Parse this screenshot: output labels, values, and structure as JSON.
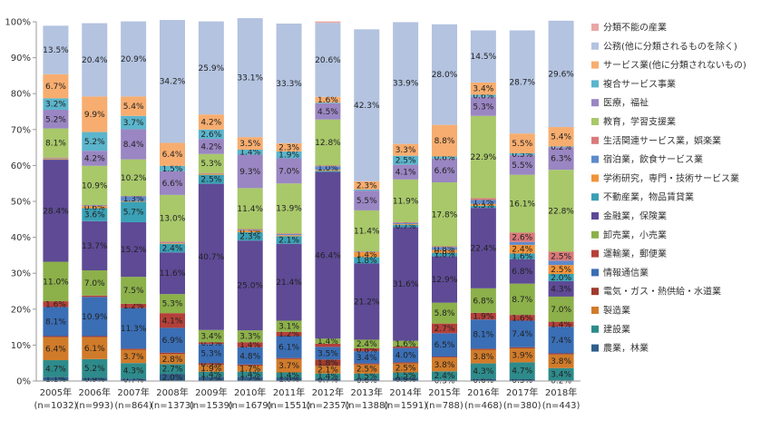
{
  "chart_data": {
    "type": "bar",
    "stacked": true,
    "percent": true,
    "categories": [
      [
        "2005年",
        "(n=1032)"
      ],
      [
        "2006年",
        "(n=993)"
      ],
      [
        "2007年",
        "(n=864)"
      ],
      [
        "2008年",
        "(n=1373)"
      ],
      [
        "2009年",
        "(n=1539)"
      ],
      [
        "2010年",
        "(n=1679)"
      ],
      [
        "2011年",
        "(n=1551)"
      ],
      [
        "2012年",
        "(n=2357)"
      ],
      [
        "2013年",
        "(n=1388)"
      ],
      [
        "2014年",
        "(n=1591)"
      ],
      [
        "2015年",
        "(n=788)"
      ],
      [
        "2016年",
        "(n=468)"
      ],
      [
        "2017年",
        "(n=380)"
      ],
      [
        "2018年",
        "(n=443)"
      ]
    ],
    "ylim": [
      0,
      100
    ],
    "yticks": [
      "0%",
      "10%",
      "20%",
      "30%",
      "40%",
      "50%",
      "60%",
      "70%",
      "80%",
      "90%",
      "100%"
    ],
    "grid": false,
    "legend_position": "right",
    "series": [
      {
        "name": "農業，林業",
        "color": "#2F5F8A",
        "values": [
          1.1,
          0.9,
          0.7,
          2.0,
          1.2,
          1.2,
          1.0,
          0.7,
          0.6,
          0.9,
          0.3,
          0.6,
          0.5,
          0.2
        ],
        "labels": [
          "1.1%",
          "0.9%",
          "0.7%",
          "2.0%",
          "1.2%",
          "1.2%",
          "1.0%",
          "0.7%",
          "0.6%",
          "0.9%",
          "0.3%",
          "0.6%",
          "0.5%",
          "0.2%"
        ]
      },
      {
        "name": "建設業",
        "color": "#2E8B8B",
        "values": [
          4.7,
          5.2,
          4.3,
          2.7,
          1.4,
          1.4,
          1.4,
          1.4,
          1.5,
          1.5,
          2.4,
          4.3,
          4.7,
          3.4
        ],
        "labels": [
          "4.7%",
          "5.2%",
          "4.3%",
          "2.7%",
          "1.4%",
          "1.4%",
          "1.4%",
          "1.4%",
          "1.5%",
          "1.5%",
          "2.4%",
          "4.3%",
          "4.7%",
          "3.4%"
        ]
      },
      {
        "name": "製造業",
        "color": "#D07B2A",
        "values": [
          6.4,
          6.1,
          3.7,
          2.8,
          1.9,
          1.7,
          3.7,
          2.1,
          2.5,
          2.5,
          3.8,
          3.8,
          3.9,
          3.8
        ],
        "labels": [
          "6.4%",
          "6.1%",
          "3.7%",
          "2.8%",
          "1.9%",
          "1.7%",
          "3.7%",
          "2.1%",
          "2.5%",
          "2.5%",
          "3.8%",
          "3.8%",
          "3.9%",
          "3.8%"
        ]
      },
      {
        "name": "電気・ガス・熱供給・水道業",
        "color": "#A03A2E",
        "values": [
          0.3,
          0.3,
          0.3,
          0.4,
          0.5,
          0.3,
          0.3,
          1.8,
          0.3,
          0.3,
          0.3,
          0.3,
          0.3,
          0.3
        ],
        "labels": [
          "",
          "",
          "",
          "",
          "0.5%",
          "",
          "",
          "1.8%",
          "",
          "",
          "",
          "",
          "",
          ""
        ]
      },
      {
        "name": "情報通信業",
        "color": "#3A6EB5",
        "values": [
          8.1,
          10.9,
          11.3,
          6.9,
          5.3,
          4.8,
          6.1,
          3.5,
          3.4,
          4.0,
          6.5,
          8.1,
          7.4,
          7.4
        ],
        "labels": [
          "8.1%",
          "10.9%",
          "11.3%",
          "6.9%",
          "5.3%",
          "4.8%",
          "6.1%",
          "3.5%",
          "3.4%",
          "4.0%",
          "6.5%",
          "8.1%",
          "7.4%",
          "7.4%"
        ]
      },
      {
        "name": "運輸業，郵便業",
        "color": "#B5403A",
        "values": [
          1.6,
          0.4,
          1.2,
          4.1,
          0.5,
          1.4,
          1.2,
          0.9,
          0.8,
          0.4,
          2.7,
          1.9,
          1.6,
          1.4
        ],
        "labels": [
          "1.6%",
          "",
          "1.2%",
          "4.1%",
          "0.5%",
          "1.4%",
          "1.2%",
          "",
          "0.8%",
          "",
          "2.7%",
          "1.9%",
          "1.6%",
          "1.4%"
        ]
      },
      {
        "name": "卸売業，小売業",
        "color": "#8CB04A",
        "values": [
          11.0,
          7.0,
          7.5,
          5.3,
          3.4,
          3.3,
          3.1,
          1.4,
          2.4,
          1.6,
          5.8,
          6.8,
          8.7,
          7.0
        ],
        "labels": [
          "11.0%",
          "7.0%",
          "7.5%",
          "5.3%",
          "3.4%",
          "3.3%",
          "3.1%",
          "1.4%",
          "2.4%",
          "1.6%",
          "5.8%",
          "6.8%",
          "8.7%",
          "7.0%"
        ]
      },
      {
        "name": "金融業，保険業",
        "color": "#5E4A95",
        "values": [
          28.4,
          13.7,
          15.2,
          11.6,
          40.7,
          25.0,
          21.4,
          46.4,
          21.2,
          31.6,
          12.9,
          22.4,
          6.8,
          4.3
        ],
        "labels": [
          "28.4%",
          "13.7%",
          "15.2%",
          "11.6%",
          "40.7%",
          "25.0%",
          "21.4%",
          "46.4%",
          "21.2%",
          "31.6%",
          "12.9%",
          "22.4%",
          "6.8%",
          "4.3%"
        ]
      },
      {
        "name": "不動産業，物品賃貸業",
        "color": "#3AA0B5",
        "values": [
          0.1,
          3.6,
          5.7,
          2.4,
          2.5,
          2.3,
          2.1,
          0.3,
          1.8,
          0.7,
          1.0,
          0.6,
          1.6,
          2.0
        ],
        "labels": [
          "",
          "3.6%",
          "5.7%",
          "2.4%",
          "2.5%",
          "2.3%",
          "2.1%",
          "",
          "1.8%",
          "0.7%",
          "1.0%",
          "",
          "1.6%",
          "2.0%"
        ]
      },
      {
        "name": "学術研究，専門・技術サービス業",
        "color": "#F0943A",
        "values": [
          0.2,
          0.6,
          0.2,
          0.2,
          0.3,
          0.5,
          0.3,
          0.3,
          1.4,
          0.2,
          0.8,
          0.5,
          2.4,
          2.5
        ],
        "labels": [
          "",
          "0.6%",
          "",
          "",
          "",
          "0.5%",
          "",
          "",
          "1.4%",
          "",
          "0.8%",
          "0.5%",
          "2.4%",
          "2.5%"
        ]
      },
      {
        "name": "宿泊業，飲食サービス業",
        "color": "#5E8ACB",
        "values": [
          0.1,
          0.2,
          1.3,
          0.1,
          0.1,
          0.2,
          0.3,
          1.0,
          0.1,
          0.3,
          0.8,
          1.1,
          0.8,
          1.2
        ],
        "labels": [
          "",
          "",
          "1.3%",
          "",
          "",
          "",
          "",
          "1.0%",
          "",
          "",
          "0.8%",
          "1.1%",
          "",
          ""
        ]
      },
      {
        "name": "生活関連サービス業，娯楽業",
        "color": "#D9797A",
        "values": [
          0.2,
          0.1,
          0.1,
          0.3,
          0.1,
          0.2,
          0.2,
          0.2,
          0.1,
          0.2,
          0.2,
          0.5,
          2.6,
          2.5
        ],
        "labels": [
          "",
          "",
          "",
          "",
          "",
          "",
          "",
          "",
          "",
          "",
          "",
          "",
          "2.6%",
          "2.5%"
        ]
      },
      {
        "name": "教育，学習支援業",
        "color": "#A8C86A",
        "values": [
          8.1,
          10.9,
          10.2,
          13.0,
          5.3,
          11.4,
          13.9,
          12.8,
          11.4,
          11.9,
          17.8,
          22.9,
          16.1,
          22.8
        ],
        "labels": [
          "8.1%",
          "10.9%",
          "10.2%",
          "13.0%",
          "5.3%",
          "11.4%",
          "13.9%",
          "12.8%",
          "11.4%",
          "11.9%",
          "17.8%",
          "22.9%",
          "16.1%",
          "22.8%"
        ]
      },
      {
        "name": "医療，福祉",
        "color": "#9A86C2",
        "values": [
          5.2,
          4.2,
          8.4,
          6.6,
          4.2,
          9.3,
          7.0,
          4.5,
          5.5,
          4.1,
          6.6,
          5.3,
          5.5,
          6.3
        ],
        "labels": [
          "5.2%",
          "4.2%",
          "8.4%",
          "6.6%",
          "4.2%",
          "9.3%",
          "7.0%",
          "4.5%",
          "5.5%",
          "4.1%",
          "6.6%",
          "5.3%",
          "5.5%",
          "6.3%"
        ]
      },
      {
        "name": "複合サービス事業",
        "color": "#5BB5CC",
        "values": [
          3.2,
          5.2,
          3.7,
          1.5,
          2.6,
          1.4,
          1.9,
          0.2,
          0.3,
          2.5,
          0.6,
          0.6,
          0.5,
          0.2
        ],
        "labels": [
          "3.2%",
          "5.2%",
          "3.7%",
          "1.5%",
          "2.6%",
          "1.4%",
          "1.9%",
          "",
          "",
          "2.5%",
          "0.6%",
          "0.6%",
          "0.5%",
          "0.2%"
        ]
      },
      {
        "name": "サービス業(他に分類されないもの)",
        "color": "#F7AD6F",
        "values": [
          6.7,
          9.9,
          5.4,
          6.4,
          4.2,
          3.5,
          2.3,
          1.6,
          2.3,
          3.3,
          8.8,
          3.4,
          5.5,
          5.4
        ],
        "labels": [
          "6.7%",
          "9.9%",
          "5.4%",
          "6.4%",
          "4.2%",
          "3.5%",
          "2.3%",
          "1.6%",
          "2.3%",
          "3.3%",
          "8.8%",
          "3.4%",
          "5.5%",
          "5.4%"
        ]
      },
      {
        "name": "公務(他に分類されるものを除く)",
        "color": "#B3C3E0",
        "values": [
          13.5,
          20.4,
          20.9,
          34.2,
          25.9,
          33.1,
          33.3,
          20.6,
          42.3,
          33.9,
          28.0,
          14.5,
          28.7,
          29.6
        ],
        "labels": [
          "13.5%",
          "20.4%",
          "20.9%",
          "34.2%",
          "25.9%",
          "33.1%",
          "33.3%",
          "20.6%",
          "42.3%",
          "33.9%",
          "28.0%",
          "14.5%",
          "28.7%",
          "29.6%"
        ]
      },
      {
        "name": "分類不能の産業",
        "color": "#E9A7A5",
        "values": [
          0.0,
          0.0,
          0.0,
          0.0,
          0.0,
          0.0,
          0.0,
          0.4,
          0.0,
          0.0,
          0.0,
          0.0,
          0.0,
          0.0
        ],
        "labels": [
          "",
          "",
          "",
          "",
          "",
          "",
          "",
          "",
          "",
          "",
          "",
          "",
          "",
          ""
        ]
      }
    ]
  }
}
